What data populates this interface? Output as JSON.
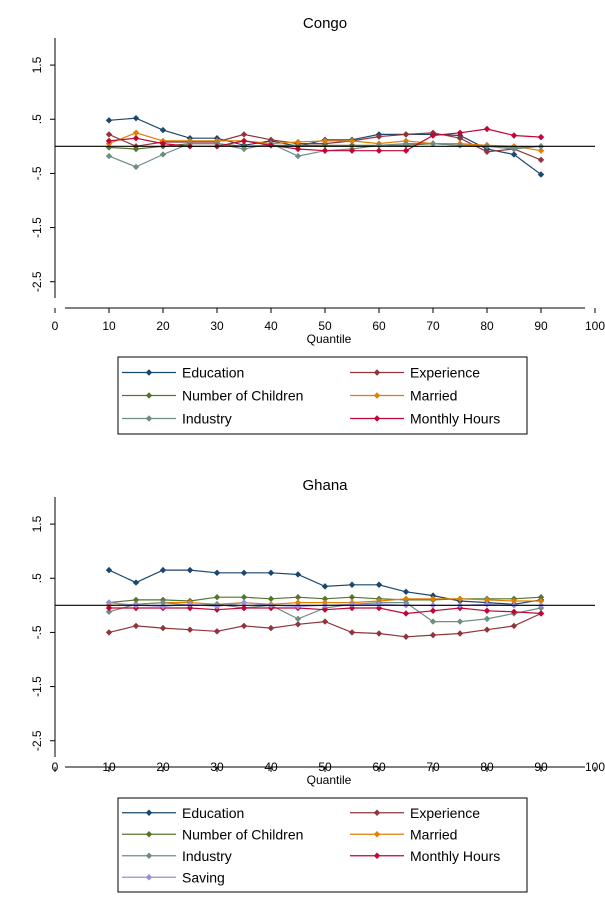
{
  "chart_data": [
    {
      "type": "line",
      "title": "Congo",
      "xlabel": "Quantile",
      "ylabel": "",
      "xlim": [
        0,
        100
      ],
      "ylim": [
        -2.8,
        2.0
      ],
      "x_ticks": [
        "0",
        "10",
        "20",
        "30",
        "40",
        "50",
        "60",
        "70",
        "80",
        "90",
        "100"
      ],
      "y_ticks": [
        {
          "value": 1.5,
          "label": "1.5"
        },
        {
          "value": 0.5,
          "label": ".5"
        },
        {
          "value": -0.5,
          "label": "-.5"
        },
        {
          "value": -1.5,
          "label": "-1.5"
        },
        {
          "value": -2.5,
          "label": "-2.5"
        }
      ],
      "reference_line": 0,
      "x": [
        10,
        15,
        20,
        25,
        30,
        35,
        40,
        45,
        50,
        55,
        60,
        65,
        70,
        75,
        80,
        85,
        90
      ],
      "series": [
        {
          "name": "Education",
          "color": "#1a476f",
          "values": [
            0.48,
            0.52,
            0.3,
            0.15,
            0.15,
            0.02,
            0.1,
            0.0,
            0.12,
            0.12,
            0.22,
            0.22,
            0.22,
            0.2,
            -0.05,
            -0.15,
            -0.52
          ]
        },
        {
          "name": "Experience",
          "color": "#90353b",
          "values": [
            0.22,
            0.0,
            0.08,
            0.08,
            0.08,
            0.22,
            0.12,
            0.05,
            0.05,
            0.1,
            0.18,
            0.22,
            0.25,
            0.15,
            -0.1,
            -0.05,
            -0.25
          ]
        },
        {
          "name": "Number of Children",
          "color": "#55752f",
          "values": [
            -0.02,
            -0.05,
            0.0,
            0.05,
            0.05,
            0.0,
            0.02,
            0.02,
            0.02,
            0.02,
            0.02,
            0.02,
            0.05,
            0.02,
            0.02,
            -0.02,
            0.0
          ]
        },
        {
          "name": "Married",
          "color": "#e37e00",
          "values": [
            0.05,
            0.25,
            0.1,
            0.1,
            0.1,
            0.1,
            0.05,
            0.08,
            0.1,
            0.1,
            0.05,
            0.1,
            0.05,
            0.05,
            0.02,
            0.0,
            -0.08
          ]
        },
        {
          "name": "Industry",
          "color": "#6e8e84",
          "values": [
            -0.18,
            -0.38,
            -0.15,
            0.05,
            0.05,
            -0.05,
            0.05,
            -0.18,
            -0.08,
            -0.05,
            0.02,
            0.05,
            0.05,
            0.02,
            0.0,
            -0.05,
            0.0
          ]
        },
        {
          "name": "Monthly Hours",
          "color": "#c10534",
          "values": [
            0.1,
            0.15,
            0.05,
            0.0,
            0.0,
            0.1,
            0.02,
            -0.05,
            -0.08,
            -0.08,
            -0.08,
            -0.08,
            0.2,
            0.25,
            0.32,
            0.2,
            0.17
          ]
        }
      ]
    },
    {
      "type": "line",
      "title": "Ghana",
      "xlabel": "Quantile",
      "ylabel": "",
      "xlim": [
        0,
        100
      ],
      "ylim": [
        -2.8,
        2.0
      ],
      "x_ticks": [
        "0",
        "10",
        "20",
        "30",
        "40",
        "50",
        "60",
        "70",
        "80",
        "90",
        "100"
      ],
      "y_ticks": [
        {
          "value": 1.5,
          "label": "1.5"
        },
        {
          "value": 0.5,
          "label": ".5"
        },
        {
          "value": -0.5,
          "label": "-.5"
        },
        {
          "value": -1.5,
          "label": "-1.5"
        },
        {
          "value": -2.5,
          "label": "-2.5"
        }
      ],
      "reference_line": 0,
      "x": [
        10,
        15,
        20,
        25,
        30,
        35,
        40,
        45,
        50,
        55,
        60,
        65,
        70,
        75,
        80,
        85,
        90
      ],
      "series": [
        {
          "name": "Education",
          "color": "#1a476f",
          "values": [
            0.65,
            0.42,
            0.65,
            0.65,
            0.6,
            0.6,
            0.6,
            0.57,
            0.35,
            0.38,
            0.38,
            0.25,
            0.18,
            0.08,
            0.05,
            0.02,
            0.1
          ]
        },
        {
          "name": "Experience",
          "color": "#90353b",
          "values": [
            -0.5,
            -0.38,
            -0.42,
            -0.45,
            -0.48,
            -0.38,
            -0.42,
            -0.35,
            -0.3,
            -0.5,
            -0.52,
            -0.58,
            -0.55,
            -0.52,
            -0.45,
            -0.38,
            -0.15
          ]
        },
        {
          "name": "Number of Children",
          "color": "#55752f",
          "values": [
            0.05,
            0.1,
            0.1,
            0.08,
            0.15,
            0.15,
            0.12,
            0.15,
            0.12,
            0.15,
            0.12,
            0.1,
            0.1,
            0.12,
            0.12,
            0.12,
            0.15
          ]
        },
        {
          "name": "Married",
          "color": "#e37e00",
          "values": [
            0.0,
            0.02,
            0.05,
            0.05,
            0.02,
            0.05,
            0.02,
            0.05,
            0.05,
            0.05,
            0.08,
            0.12,
            0.12,
            0.12,
            0.1,
            0.08,
            0.08
          ]
        },
        {
          "name": "Industry",
          "color": "#6e8e84",
          "values": [
            -0.12,
            0.02,
            0.05,
            0.0,
            0.02,
            -0.05,
            0.0,
            -0.25,
            -0.05,
            0.02,
            0.05,
            0.05,
            -0.3,
            -0.3,
            -0.25,
            -0.15,
            -0.05
          ]
        },
        {
          "name": "Monthly Hours",
          "color": "#c10534",
          "values": [
            -0.05,
            -0.05,
            -0.05,
            -0.05,
            -0.08,
            -0.05,
            -0.05,
            -0.05,
            -0.08,
            -0.05,
            -0.05,
            -0.15,
            -0.1,
            -0.05,
            -0.1,
            -0.12,
            -0.15
          ]
        },
        {
          "name": "Saving",
          "color": "#9a8fdd",
          "values": [
            0.05,
            0.0,
            -0.02,
            0.02,
            -0.02,
            0.05,
            0.0,
            -0.02,
            0.0,
            0.02,
            0.02,
            0.0,
            0.0,
            0.0,
            0.02,
            0.0,
            0.0
          ]
        }
      ]
    }
  ]
}
